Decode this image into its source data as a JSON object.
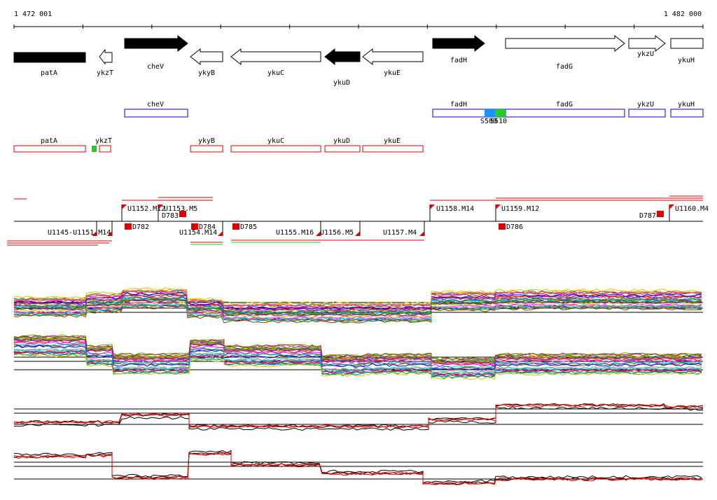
{
  "axis": {
    "start_label": "1 472 001",
    "end_label": "1 482 000"
  },
  "genes": [
    {
      "name": "patA",
      "dir": "left",
      "fill": "black"
    },
    {
      "name": "ykzT",
      "dir": "left",
      "fill": "white"
    },
    {
      "name": "cheV",
      "dir": "right",
      "fill": "black"
    },
    {
      "name": "ykyB",
      "dir": "left",
      "fill": "white"
    },
    {
      "name": "ykuC",
      "dir": "left",
      "fill": "white"
    },
    {
      "name": "ykuD",
      "dir": "left",
      "fill": "black"
    },
    {
      "name": "ykuE",
      "dir": "left",
      "fill": "white"
    },
    {
      "name": "fadH",
      "dir": "right",
      "fill": "black"
    },
    {
      "name": "fadG",
      "dir": "right",
      "fill": "white"
    },
    {
      "name": "ykzU",
      "dir": "right",
      "fill": "white"
    },
    {
      "name": "ykuH",
      "dir": "right",
      "fill": "white"
    }
  ],
  "blue_track": [
    "cheV",
    "fadH",
    "fadG",
    "ykzU",
    "ykuH"
  ],
  "blue_markers": [
    "S509",
    "S510"
  ],
  "red_track": [
    "patA",
    "ykzT",
    "ykyB",
    "ykuC",
    "ykuD",
    "ykuE"
  ],
  "upper_labels": [
    "U1152.M12",
    "U1153.M5",
    "D783",
    "U1158.M14",
    "U1159.M12",
    "D787",
    "U1160.M4"
  ],
  "lower_labels": [
    "U1145-U1151.M14",
    "D782",
    "U1154.M14",
    "D784",
    "D785",
    "U1155.M16",
    "U1156.M5",
    "U1157.M4",
    "D786"
  ],
  "colors": {
    "gene_stroke": "#000000",
    "blue": "#0000cc",
    "red": "#dd0000",
    "marker_blue": "#1e90ff",
    "marker_green": "#22cc22"
  }
}
